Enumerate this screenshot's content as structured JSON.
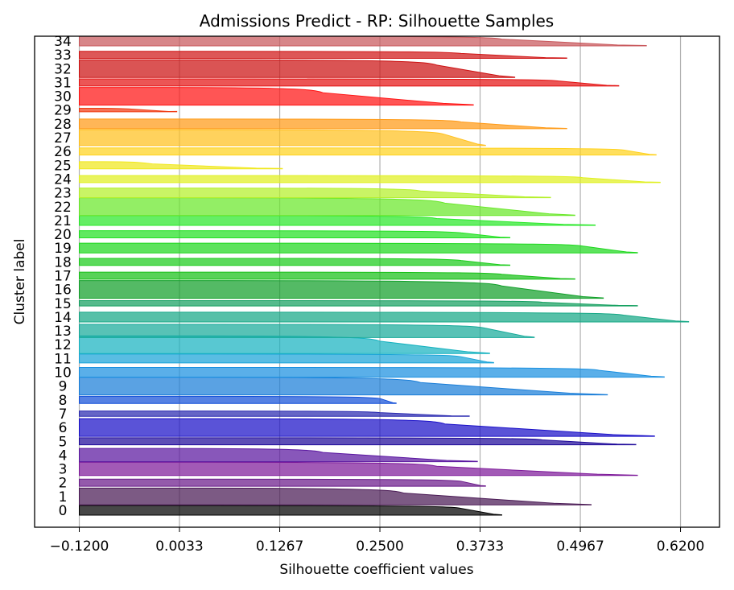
{
  "chart_data": {
    "type": "area",
    "title": "Admissions Predict - RP: Silhouette Samples",
    "xlabel": "Silhouette coefficient values",
    "ylabel": "Cluster label",
    "xlim": [
      -0.175,
      0.668
    ],
    "x_ticks": [
      "−0.1200",
      "0.0033",
      "0.1267",
      "0.2500",
      "0.3733",
      "0.4967",
      "0.6200"
    ],
    "x_tick_values": [
      -0.12,
      0.0033,
      0.1267,
      0.25,
      0.3733,
      0.4967,
      0.62
    ],
    "grid": "vertical",
    "clusters": [
      {
        "label": "0",
        "color": "#000000",
        "max": 0.4,
        "min": -0.12,
        "knee": 0.35,
        "size": 0.55
      },
      {
        "label": "1",
        "color": "#4a1a55",
        "max": 0.51,
        "min": -0.12,
        "knee": 0.28,
        "size": 0.95
      },
      {
        "label": "2",
        "color": "#6b1b8a",
        "max": 0.38,
        "min": -0.12,
        "knee": 0.35,
        "size": 0.4
      },
      {
        "label": "3",
        "color": "#7e1a9a",
        "max": 0.567,
        "min": -0.12,
        "knee": 0.32,
        "size": 0.75
      },
      {
        "label": "4",
        "color": "#5a16a0",
        "max": 0.37,
        "min": -0.12,
        "knee": 0.18,
        "size": 0.75
      },
      {
        "label": "5",
        "color": "#1f0a9a",
        "max": 0.565,
        "min": -0.12,
        "knee": 0.45,
        "size": 0.4
      },
      {
        "label": "6",
        "color": "#1a10c8",
        "max": 0.588,
        "min": -0.12,
        "knee": 0.33,
        "size": 1.0
      },
      {
        "label": "7",
        "color": "#2a2ab0",
        "max": 0.36,
        "min": -0.12,
        "knee": 0.25,
        "size": 0.3
      },
      {
        "label": "8",
        "color": "#1450d8",
        "max": 0.27,
        "min": -0.12,
        "knee": 0.25,
        "size": 0.4
      },
      {
        "label": "9",
        "color": "#1a7ed8",
        "max": 0.53,
        "min": -0.12,
        "knee": 0.3,
        "size": 1.0
      },
      {
        "label": "10",
        "color": "#1a90e0",
        "max": 0.6,
        "min": -0.12,
        "knee": 0.52,
        "size": 0.55
      },
      {
        "label": "11",
        "color": "#19a4d8",
        "max": 0.39,
        "min": -0.12,
        "knee": 0.35,
        "size": 0.5
      },
      {
        "label": "12",
        "color": "#17b3c0",
        "max": 0.385,
        "min": -0.12,
        "knee": 0.25,
        "size": 1.0
      },
      {
        "label": "13",
        "color": "#17aa9a",
        "max": 0.44,
        "min": -0.12,
        "knee": 0.38,
        "size": 0.75
      },
      {
        "label": "14",
        "color": "#16a886",
        "max": 0.63,
        "min": -0.12,
        "knee": 0.55,
        "size": 0.55
      },
      {
        "label": "15",
        "color": "#15a060",
        "max": 0.567,
        "min": -0.12,
        "knee": 0.45,
        "size": 0.3
      },
      {
        "label": "16",
        "color": "#12a02a",
        "max": 0.525,
        "min": -0.12,
        "knee": 0.4,
        "size": 1.0
      },
      {
        "label": "17",
        "color": "#18c018",
        "max": 0.49,
        "min": -0.12,
        "knee": 0.4,
        "size": 0.4
      },
      {
        "label": "18",
        "color": "#1ccc1c",
        "max": 0.41,
        "min": -0.12,
        "knee": 0.35,
        "size": 0.4
      },
      {
        "label": "19",
        "color": "#1ed81e",
        "max": 0.567,
        "min": -0.12,
        "knee": 0.5,
        "size": 0.55
      },
      {
        "label": "20",
        "color": "#22e022",
        "max": 0.41,
        "min": -0.12,
        "knee": 0.35,
        "size": 0.4
      },
      {
        "label": "21",
        "color": "#2ae82a",
        "max": 0.515,
        "min": -0.12,
        "knee": 0.32,
        "size": 0.55
      },
      {
        "label": "22",
        "color": "#6ae82a",
        "max": 0.49,
        "min": -0.12,
        "knee": 0.33,
        "size": 1.0
      },
      {
        "label": "23",
        "color": "#b4f02a",
        "max": 0.46,
        "min": -0.12,
        "knee": 0.3,
        "size": 0.55
      },
      {
        "label": "24",
        "color": "#e0f020",
        "max": 0.595,
        "min": -0.12,
        "knee": 0.5,
        "size": 0.4
      },
      {
        "label": "25",
        "color": "#f0e81e",
        "max": 0.13,
        "min": -0.12,
        "knee": -0.03,
        "size": 0.4
      },
      {
        "label": "26",
        "color": "#ffd21e",
        "max": 0.59,
        "min": -0.12,
        "knee": 0.55,
        "size": 0.4
      },
      {
        "label": "27",
        "color": "#ffc01e",
        "max": 0.38,
        "min": -0.12,
        "knee": 0.33,
        "size": 0.9
      },
      {
        "label": "28",
        "color": "#ff9a16",
        "max": 0.48,
        "min": -0.12,
        "knee": 0.35,
        "size": 0.55
      },
      {
        "label": "29",
        "color": "#f03c14",
        "max": 0.0,
        "min": -0.12,
        "knee": -0.05,
        "size": 0.2
      },
      {
        "label": "30",
        "color": "#ff1414",
        "max": 0.365,
        "min": -0.12,
        "knee": 0.18,
        "size": 1.0
      },
      {
        "label": "31",
        "color": "#e41414",
        "max": 0.544,
        "min": -0.12,
        "knee": 0.47,
        "size": 0.4
      },
      {
        "label": "32",
        "color": "#cc1212",
        "max": 0.416,
        "min": -0.12,
        "knee": 0.32,
        "size": 1.0
      },
      {
        "label": "33",
        "color": "#d01616",
        "max": 0.48,
        "min": -0.12,
        "knee": 0.35,
        "size": 0.4
      },
      {
        "label": "34",
        "color": "#c8585c",
        "max": 0.578,
        "min": -0.12,
        "knee": 0.4,
        "size": 0.55
      }
    ]
  }
}
